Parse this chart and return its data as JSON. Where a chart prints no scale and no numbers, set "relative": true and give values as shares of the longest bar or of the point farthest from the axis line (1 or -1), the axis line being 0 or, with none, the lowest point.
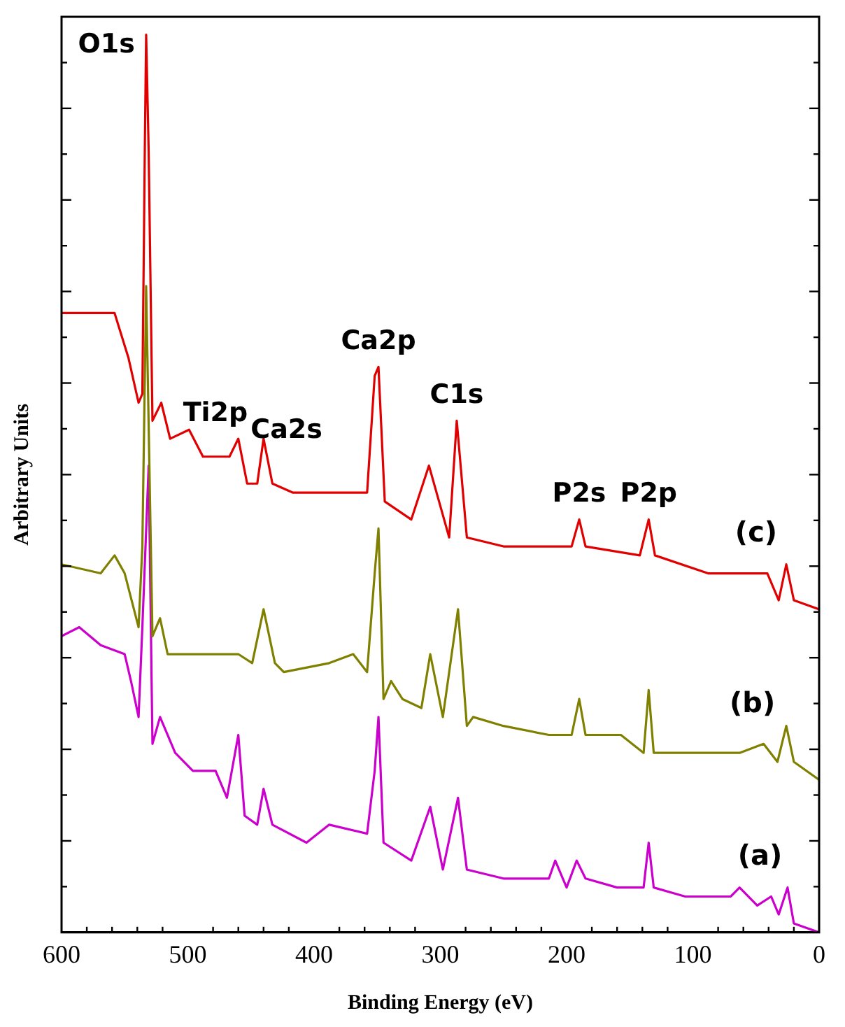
{
  "chart_data": {
    "type": "line",
    "xlabel": "Binding Energy (eV)",
    "ylabel": "Arbitrary Units",
    "relative": true,
    "xlim": [
      600,
      0
    ],
    "xticks": [
      600,
      500,
      400,
      300,
      200,
      100,
      0
    ],
    "tick_labels": "x",
    "grid": false,
    "legend": false,
    "marker": "none",
    "line_style": "solid",
    "series": [
      {
        "name": "(c)",
        "color": "#e00000",
        "x": [
          600,
          558,
          547,
          539,
          536,
          534,
          533,
          531,
          528,
          521,
          514,
          499,
          488,
          467,
          460,
          453,
          445,
          440,
          433,
          417,
          388,
          358,
          352,
          349,
          344,
          323,
          309,
          293,
          287,
          279,
          250,
          214,
          196,
          190,
          185,
          142,
          135,
          130,
          88,
          41,
          32,
          26,
          20,
          0
        ],
        "values": [
          0.69,
          0.69,
          0.64,
          0.59,
          0.6,
          0.88,
          1,
          0.87,
          0.57,
          0.59,
          0.55,
          0.56,
          0.53,
          0.53,
          0.55,
          0.5,
          0.5,
          0.55,
          0.5,
          0.49,
          0.49,
          0.49,
          0.62,
          0.63,
          0.48,
          0.46,
          0.52,
          0.44,
          0.57,
          0.44,
          0.43,
          0.43,
          0.43,
          0.46,
          0.43,
          0.42,
          0.46,
          0.42,
          0.4,
          0.4,
          0.37,
          0.41,
          0.37,
          0.36
        ]
      },
      {
        "name": "(b)",
        "color": "#808000",
        "x": [
          600,
          569,
          558,
          550,
          539,
          536,
          533,
          528,
          522,
          516,
          496,
          460,
          449,
          440,
          431,
          424,
          388,
          369,
          358,
          352,
          349,
          345,
          339,
          330,
          315,
          308,
          298,
          286,
          279,
          274,
          250,
          214,
          196,
          190,
          185,
          157,
          139,
          135,
          131,
          106,
          63,
          44,
          33,
          26,
          20,
          0
        ],
        "values": [
          0.41,
          0.4,
          0.42,
          0.4,
          0.34,
          0.43,
          0.72,
          0.33,
          0.35,
          0.31,
          0.31,
          0.31,
          0.3,
          0.36,
          0.3,
          0.29,
          0.3,
          0.31,
          0.29,
          0.4,
          0.45,
          0.26,
          0.28,
          0.26,
          0.25,
          0.31,
          0.24,
          0.36,
          0.23,
          0.24,
          0.23,
          0.22,
          0.22,
          0.26,
          0.22,
          0.22,
          0.2,
          0.27,
          0.2,
          0.2,
          0.2,
          0.21,
          0.19,
          0.23,
          0.19,
          0.17
        ]
      },
      {
        "name": "(a)",
        "color": "#cc00cc",
        "x": [
          600,
          586,
          569,
          550,
          545,
          539,
          536,
          531,
          528,
          522,
          510,
          496,
          478,
          469,
          460,
          455,
          445,
          440,
          433,
          406,
          388,
          358,
          352,
          349,
          345,
          323,
          308,
          298,
          286,
          279,
          250,
          214,
          209,
          200,
          192,
          185,
          160,
          139,
          135,
          131,
          106,
          70,
          63,
          49,
          38,
          32,
          25,
          20,
          0
        ],
        "values": [
          0.33,
          0.34,
          0.32,
          0.31,
          0.28,
          0.24,
          0.34,
          0.52,
          0.21,
          0.24,
          0.2,
          0.18,
          0.18,
          0.15,
          0.22,
          0.13,
          0.12,
          0.16,
          0.12,
          0.1,
          0.12,
          0.11,
          0.18,
          0.24,
          0.1,
          0.08,
          0.14,
          0.07,
          0.15,
          0.07,
          0.06,
          0.06,
          0.08,
          0.05,
          0.08,
          0.06,
          0.05,
          0.05,
          0.1,
          0.05,
          0.04,
          0.04,
          0.05,
          0.03,
          0.04,
          0.02,
          0.05,
          0.01,
          0
        ]
      }
    ],
    "annotations": [
      {
        "text": "O1s",
        "x": 533,
        "y": 1
      },
      {
        "text": "Ti2p",
        "x": 460,
        "y": 0.55
      },
      {
        "text": "Ca2s",
        "x": 440,
        "y": 0.55
      },
      {
        "text": "Ca2p",
        "x": 349,
        "y": 0.63
      },
      {
        "text": "C1s",
        "x": 287,
        "y": 0.57
      },
      {
        "text": "P2s",
        "x": 190,
        "y": 0.46
      },
      {
        "text": "P2p",
        "x": 135,
        "y": 0.46
      }
    ]
  }
}
